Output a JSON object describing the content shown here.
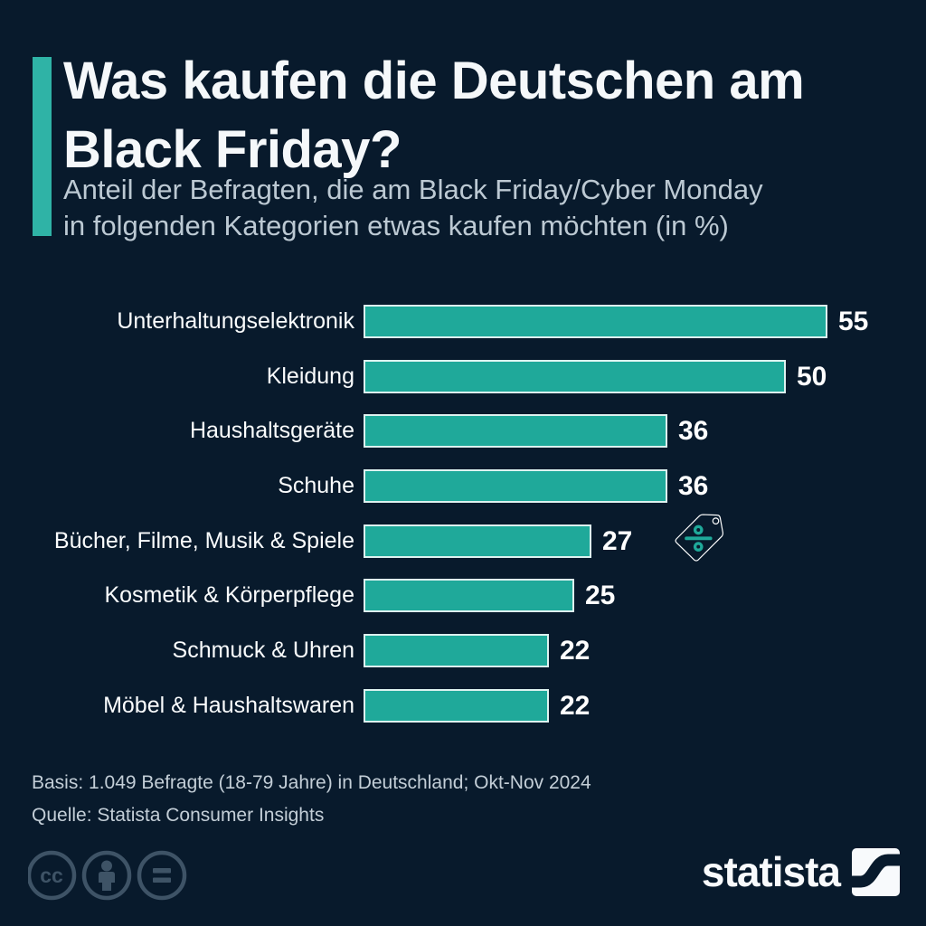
{
  "title": {
    "line1": "Was kaufen die Deutschen am",
    "line2": "Black Friday?"
  },
  "subtitle": {
    "line1": "Anteil der Befragten, die am Black Friday/Cyber Monday",
    "line2": "in folgenden Kategorien etwas kaufen möchten (in %)"
  },
  "chart_data": {
    "type": "bar",
    "orientation": "horizontal",
    "title": "Was kaufen die Deutschen am Black Friday?",
    "categories": [
      "Unterhaltungselektronik",
      "Kleidung",
      "Haushaltsgeräte",
      "Schuhe",
      "Bücher, Filme, Musik & Spiele",
      "Kosmetik & Körperpflege",
      "Schmuck & Uhren",
      "Möbel & Haushaltswaren"
    ],
    "values": [
      55,
      50,
      36,
      36,
      27,
      25,
      22,
      22
    ],
    "unit": "%",
    "xlim": [
      0,
      55
    ],
    "grid": false,
    "value_labels": "end-of-bar",
    "bar_color": "#1FA99A",
    "bar_border_color": "rgba(255,255,255,0.85)",
    "legend": "none"
  },
  "footer": {
    "basis": "Basis: 1.049 Befragte (18-79 Jahre) in Deutschland; Okt-Nov 2024",
    "source": "Quelle: Statista Consumer Insights"
  },
  "branding": {
    "wordmark": "statista"
  },
  "license": {
    "cc_label": "cc",
    "icons": [
      "cc-license-icon",
      "cc-attribution-icon",
      "cc-no-derivatives-icon"
    ]
  },
  "decoration": {
    "tag_icon": "price-tag-percent-icon"
  },
  "colors": {
    "background": "#081A2C",
    "teal": "#1FA99A",
    "accent": "#2FB3A6",
    "title_text": "#F5F8FA",
    "subtitle_text": "#BCC9D3",
    "footer_text": "#C3CED7",
    "license_icon": "#3E5366",
    "value_text": "#FFFFFF"
  }
}
